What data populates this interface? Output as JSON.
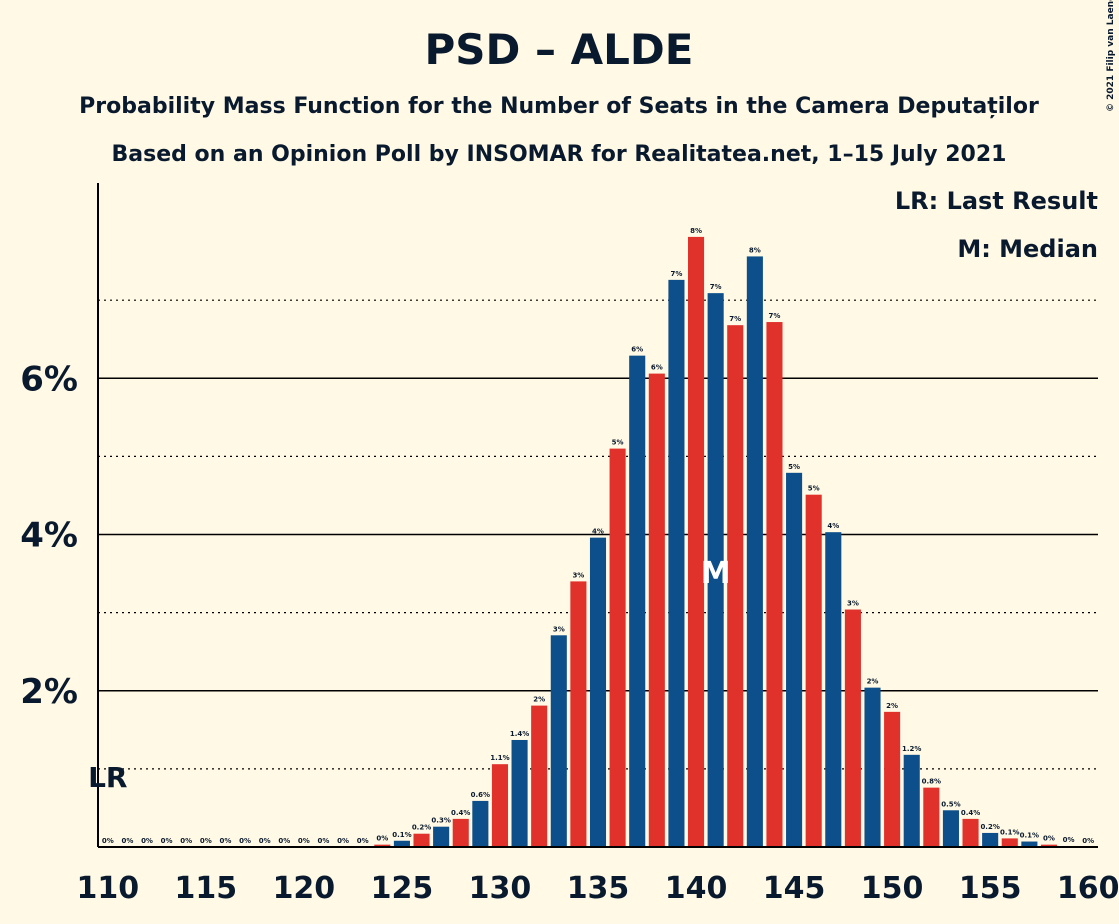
{
  "chart_data": {
    "type": "bar",
    "title": "PSD – ALDE",
    "subtitle": "Probability Mass Function for the Number of Seats in the Camera Deputaților",
    "subtitle2": "Based on an Opinion Poll by INSOMAR for Realitatea.net, 1–15 July 2021",
    "copyright": "© 2021 Filip van Laenen",
    "x": [
      110,
      111,
      112,
      113,
      114,
      115,
      116,
      117,
      118,
      119,
      120,
      121,
      122,
      123,
      124,
      125,
      126,
      127,
      128,
      129,
      130,
      131,
      132,
      133,
      134,
      135,
      136,
      137,
      138,
      139,
      140,
      141,
      142,
      143,
      144,
      145,
      146,
      147,
      148,
      149,
      150,
      151,
      152,
      153,
      154,
      155,
      156,
      157,
      158,
      159,
      160
    ],
    "values": [
      0,
      0,
      0,
      0,
      0,
      0,
      0,
      0,
      0,
      0,
      0,
      0,
      0,
      0,
      0.03,
      0.08,
      0.17,
      0.26,
      0.36,
      0.59,
      1.06,
      1.37,
      1.81,
      2.71,
      3.4,
      3.96,
      5.1,
      6.29,
      6.06,
      7.26,
      7.81,
      7.09,
      6.68,
      7.56,
      6.72,
      4.79,
      4.51,
      4.03,
      3.04,
      2.04,
      1.73,
      1.18,
      0.76,
      0.47,
      0.36,
      0.18,
      0.11,
      0.07,
      0.03,
      0.01,
      0
    ],
    "value_labels": [
      "0%",
      "0%",
      "0%",
      "0%",
      "0%",
      "0%",
      "0%",
      "0%",
      "0%",
      "0%",
      "0%",
      "0%",
      "0%",
      "0%",
      "0%",
      "0.1%",
      "0.2%",
      "0.3%",
      "0.4%",
      "0.6%",
      "1.1%",
      "1.4%",
      "2%",
      "3%",
      "3%",
      "4%",
      "5%",
      "6%",
      "6%",
      "7%",
      "8%",
      "7%",
      "7%",
      "8%",
      "7%",
      "5%",
      "5%",
      "4%",
      "3%",
      "2%",
      "2%",
      "1.2%",
      "0.8%",
      "0.5%",
      "0.4%",
      "0.2%",
      "0.1%",
      "0.1%",
      "0%",
      "0%",
      "0%"
    ],
    "bar_colors": [
      "#e0312b",
      "#0d4f8b"
    ],
    "xlim": [
      109.5,
      160.5
    ],
    "xticks": [
      110,
      115,
      120,
      125,
      130,
      135,
      140,
      145,
      150,
      155,
      160
    ],
    "ylim": [
      0,
      8.5
    ],
    "yticks": [
      {
        "value": 2,
        "label": "2%"
      },
      {
        "value": 4,
        "label": "4%"
      },
      {
        "value": 6,
        "label": "6%"
      }
    ],
    "minor_yticks": [
      1,
      3,
      5,
      7
    ],
    "last_result": {
      "label": "LR",
      "x": 110
    },
    "median": {
      "label": "M",
      "x": 141
    },
    "legend": [
      "LR: Last Result",
      "M: Median"
    ]
  }
}
